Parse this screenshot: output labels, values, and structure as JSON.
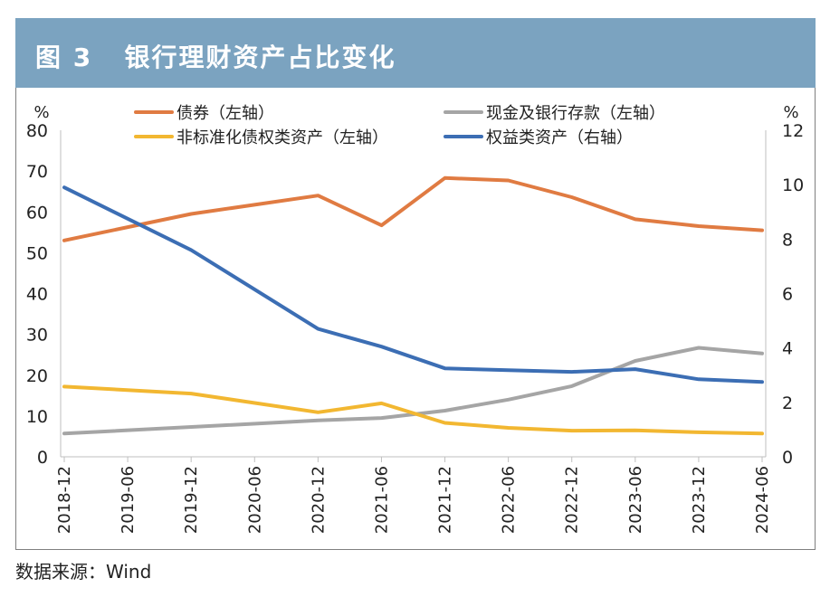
{
  "header": {
    "figure_no": "图 3",
    "title": "银行理财资产占比变化"
  },
  "source": "数据来源：Wind",
  "colors": {
    "header_bg": "#7ba3c0",
    "bonds": "#e07b42",
    "cash": "#a5a5a5",
    "nonstandard": "#f2b731",
    "equity": "#3c6eb4"
  },
  "chart_data": {
    "type": "line",
    "title": "银行理财资产占比变化",
    "categories": [
      "2018-12",
      "2019-06",
      "2019-12",
      "2020-06",
      "2020-12",
      "2021-06",
      "2021-12",
      "2022-06",
      "2022-12",
      "2023-06",
      "2023-12",
      "2024-06"
    ],
    "y_left": {
      "unit": "%",
      "range": [
        0,
        80
      ],
      "ticks": [
        0,
        10,
        20,
        30,
        40,
        50,
        60,
        70,
        80
      ]
    },
    "y_right": {
      "unit": "%",
      "range": [
        0,
        12
      ],
      "ticks": [
        0,
        2,
        4,
        6,
        8,
        10,
        12
      ]
    },
    "legend_position": "top",
    "series": [
      {
        "name": "债券（左轴）",
        "axis": "left",
        "color": "#e07b42",
        "values": [
          53.0,
          null,
          59.5,
          null,
          64.0,
          56.7,
          68.3,
          67.7,
          63.6,
          58.2,
          56.5,
          55.5
        ]
      },
      {
        "name": "现金及银行存款（左轴）",
        "axis": "left",
        "color": "#a5a5a5",
        "values": [
          5.7,
          null,
          null,
          null,
          8.9,
          9.5,
          11.3,
          14.0,
          17.3,
          23.5,
          26.7,
          25.3
        ]
      },
      {
        "name": "非标准化债权类资产（左轴）",
        "axis": "left",
        "color": "#f2b731",
        "values": [
          17.2,
          null,
          15.5,
          null,
          10.9,
          13.1,
          8.3,
          7.1,
          6.4,
          6.5,
          6.0,
          5.7
        ]
      },
      {
        "name": "权益类资产（右轴）",
        "axis": "right",
        "color": "#3c6eb4",
        "values": [
          9.9,
          null,
          7.6,
          null,
          4.7,
          4.05,
          3.25,
          3.18,
          3.12,
          3.22,
          2.85,
          2.75
        ]
      }
    ]
  }
}
